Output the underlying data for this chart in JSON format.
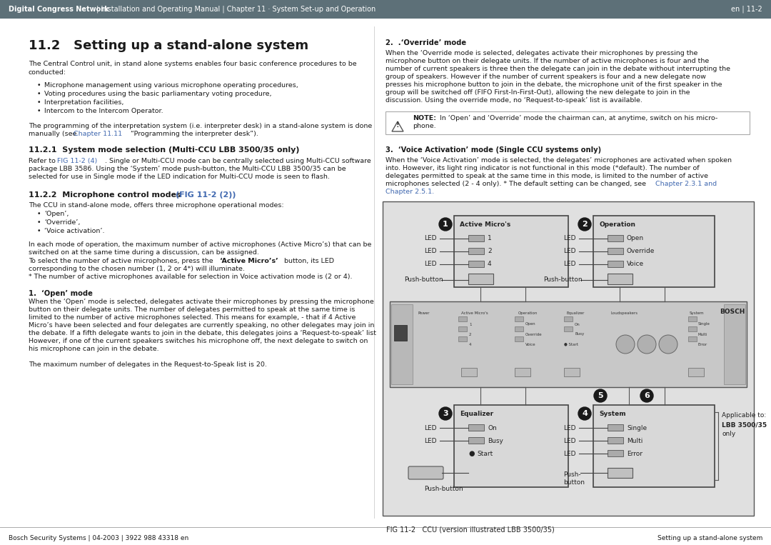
{
  "header_bg": "#5d7078",
  "header_text_left_bold": "Digital Congress Network",
  "header_text_left_rest": " | Installation and Operating Manual | Chapter 11 · System Set-up and Operation",
  "header_text_right": "en | 11-2",
  "footer_left": "Bosch Security Systems | 04-2003 | 3922 988 43318 en",
  "footer_right": "Setting up a stand-alone system",
  "title": "11.2   Setting up a stand-alone system",
  "bg_color": "#ffffff",
  "text_color": "#1a1a1a",
  "link_color": "#4169b0",
  "header_font_size": 7.0,
  "body_font_size": 6.8,
  "title_font_size": 13,
  "section_font_size": 8.0,
  "subsection_font_size": 7.2
}
